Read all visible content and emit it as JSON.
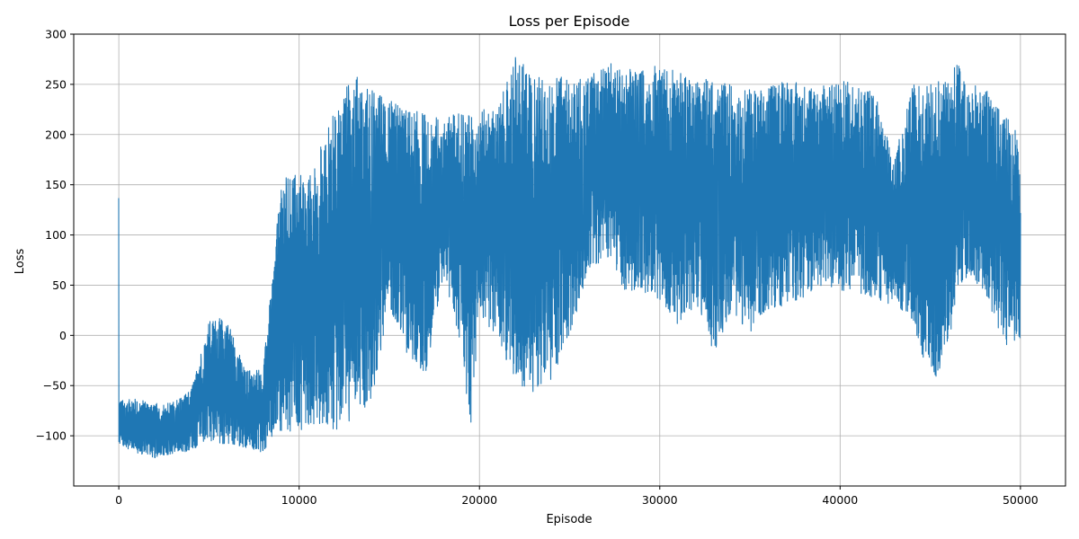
{
  "chart_data": {
    "type": "line",
    "title": "Loss per Episode",
    "xlabel": "Episode",
    "ylabel": "Loss",
    "xlim": [
      -2500,
      52500
    ],
    "ylim": [
      -150,
      300
    ],
    "xticks": [
      0,
      10000,
      20000,
      30000,
      40000,
      50000
    ],
    "yticks": [
      -100,
      -50,
      0,
      50,
      100,
      150,
      200,
      250,
      300
    ],
    "grid": true,
    "series": [
      {
        "color": "#1f77b4",
        "x_range": [
          0,
          50000
        ],
        "envelope": [
          {
            "x": 0,
            "low": -110,
            "high": -65
          },
          {
            "x": 1000,
            "low": -118,
            "high": -63
          },
          {
            "x": 2000,
            "low": -122,
            "high": -68
          },
          {
            "x": 3000,
            "low": -118,
            "high": -66
          },
          {
            "x": 4000,
            "low": -115,
            "high": -55
          },
          {
            "x": 5000,
            "low": -105,
            "high": 15
          },
          {
            "x": 6000,
            "low": -110,
            "high": 18
          },
          {
            "x": 7000,
            "low": -112,
            "high": -35
          },
          {
            "x": 8000,
            "low": -118,
            "high": -32
          },
          {
            "x": 8500,
            "low": -100,
            "high": 55
          },
          {
            "x": 9000,
            "low": -95,
            "high": 155
          },
          {
            "x": 10000,
            "low": -98,
            "high": 165
          },
          {
            "x": 10500,
            "low": -90,
            "high": 155
          },
          {
            "x": 11000,
            "low": -92,
            "high": 180
          },
          {
            "x": 12000,
            "low": -95,
            "high": 225
          },
          {
            "x": 13000,
            "low": -85,
            "high": 262
          },
          {
            "x": 14000,
            "low": -70,
            "high": 245
          },
          {
            "x": 15000,
            "low": 30,
            "high": 235
          },
          {
            "x": 16000,
            "low": -20,
            "high": 225
          },
          {
            "x": 17000,
            "low": -40,
            "high": 222
          },
          {
            "x": 18000,
            "low": 60,
            "high": 215
          },
          {
            "x": 19000,
            "low": -15,
            "high": 225
          },
          {
            "x": 19500,
            "low": -95,
            "high": 225
          },
          {
            "x": 20000,
            "low": 20,
            "high": 225
          },
          {
            "x": 21000,
            "low": -5,
            "high": 225
          },
          {
            "x": 22000,
            "low": -45,
            "high": 280
          },
          {
            "x": 23000,
            "low": -60,
            "high": 260
          },
          {
            "x": 24000,
            "low": -45,
            "high": 255
          },
          {
            "x": 25000,
            "low": 0,
            "high": 260
          },
          {
            "x": 26000,
            "low": 60,
            "high": 255
          },
          {
            "x": 27000,
            "low": 80,
            "high": 275
          },
          {
            "x": 28000,
            "low": 45,
            "high": 265
          },
          {
            "x": 29000,
            "low": 40,
            "high": 265
          },
          {
            "x": 30000,
            "low": 35,
            "high": 270
          },
          {
            "x": 31000,
            "low": 10,
            "high": 265
          },
          {
            "x": 32000,
            "low": 30,
            "high": 260
          },
          {
            "x": 33000,
            "low": -18,
            "high": 255
          },
          {
            "x": 34000,
            "low": 25,
            "high": 250
          },
          {
            "x": 35000,
            "low": 0,
            "high": 245
          },
          {
            "x": 36000,
            "low": 25,
            "high": 250
          },
          {
            "x": 37000,
            "low": 30,
            "high": 255
          },
          {
            "x": 38000,
            "low": 35,
            "high": 250
          },
          {
            "x": 39000,
            "low": 50,
            "high": 250
          },
          {
            "x": 40000,
            "low": 45,
            "high": 255
          },
          {
            "x": 41000,
            "low": 40,
            "high": 250
          },
          {
            "x": 42000,
            "low": 35,
            "high": 245
          },
          {
            "x": 43000,
            "low": 30,
            "high": 175
          },
          {
            "x": 44000,
            "low": 15,
            "high": 250
          },
          {
            "x": 45000,
            "low": -48,
            "high": 255
          },
          {
            "x": 46000,
            "low": -30,
            "high": 255
          },
          {
            "x": 46500,
            "low": 50,
            "high": 272
          },
          {
            "x": 47000,
            "low": 55,
            "high": 250
          },
          {
            "x": 48000,
            "low": 45,
            "high": 248
          },
          {
            "x": 49000,
            "low": -5,
            "high": 220
          },
          {
            "x": 49800,
            "low": -20,
            "high": 210
          },
          {
            "x": 50000,
            "low": 0,
            "high": 150
          }
        ]
      }
    ]
  }
}
